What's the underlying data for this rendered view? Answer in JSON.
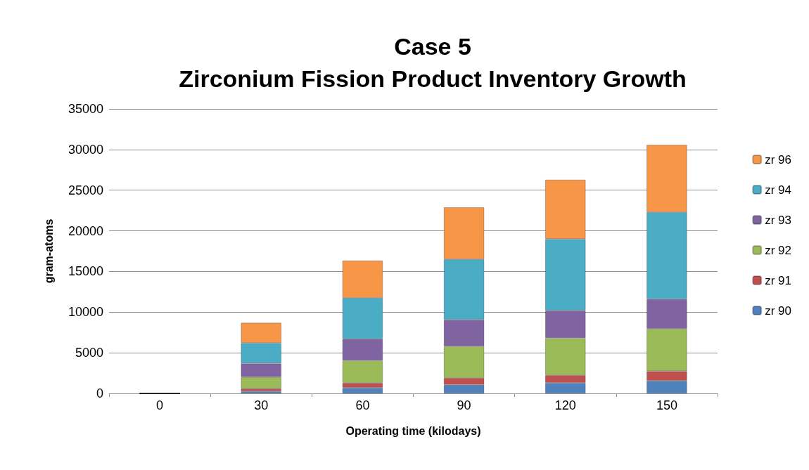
{
  "chart_data": {
    "type": "bar",
    "title": "Case 5\nZirconium Fission Product Inventory Growth",
    "xlabel": "Operating time (kilodays)",
    "ylabel": "gram-atoms",
    "categories": [
      "0",
      "30",
      "60",
      "90",
      "120",
      "150"
    ],
    "stacked": true,
    "series": [
      {
        "name": "zr 90",
        "color": "#4f81bd",
        "values": [
          0,
          250,
          700,
          1050,
          1300,
          1550
        ]
      },
      {
        "name": "zr 91",
        "color": "#c0504d",
        "values": [
          0,
          350,
          600,
          850,
          950,
          1200
        ]
      },
      {
        "name": "zr 92",
        "color": "#9bbb59",
        "values": [
          0,
          1400,
          2750,
          3900,
          4550,
          5200
        ]
      },
      {
        "name": "zr 93",
        "color": "#8064a2",
        "values": [
          0,
          1700,
          2650,
          3250,
          3400,
          3650
        ]
      },
      {
        "name": "zr 94",
        "color": "#4bacc6",
        "values": [
          0,
          2500,
          5050,
          7450,
          8800,
          10700
        ]
      },
      {
        "name": "zr 96",
        "color": "#f79646",
        "values": [
          0,
          2500,
          4600,
          6400,
          7300,
          8300
        ]
      }
    ],
    "ylim": [
      0,
      35000
    ],
    "yticks": [
      0,
      5000,
      10000,
      15000,
      20000,
      25000,
      30000,
      35000
    ],
    "grid": "y",
    "legend": "right"
  }
}
